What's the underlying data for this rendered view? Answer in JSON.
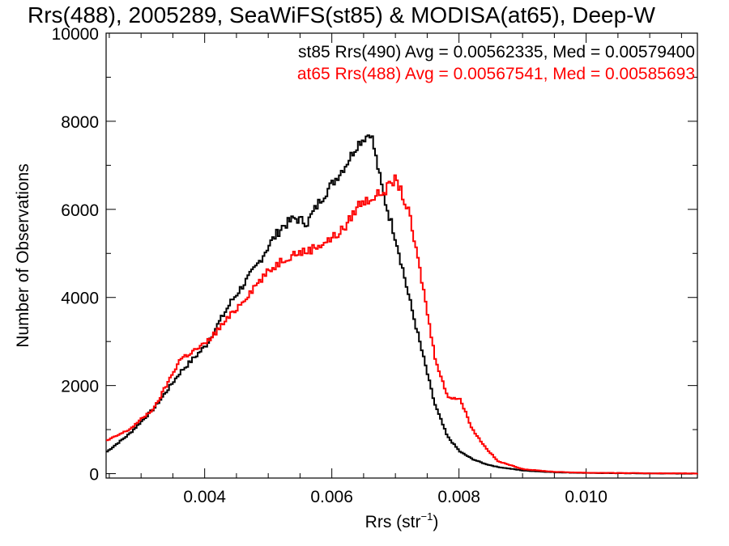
{
  "chart_data": {
    "type": "line",
    "title": "Rrs(488), 2005289, SeaWiFS(st85) & MODISA(at65), Deep-W",
    "xlabel_main": "Rrs (str",
    "xlabel_sup": "−1",
    "xlabel_close": ")",
    "ylabel": "Number of Observations",
    "xlim": [
      0.00245,
      0.01175
    ],
    "ylim": [
      -100,
      10000
    ],
    "x_ticks": [
      0.004,
      0.006,
      0.008,
      0.01
    ],
    "x_tick_labels": [
      "0.004",
      "0.006",
      "0.008",
      "0.010"
    ],
    "y_ticks": [
      0,
      2000,
      4000,
      6000,
      8000,
      10000
    ],
    "y_tick_labels": [
      "0",
      "2000",
      "4000",
      "6000",
      "8000",
      "10000"
    ],
    "legend_placement": "top-right",
    "series": [
      {
        "name": "st85 Rrs(490) Avg = 0.00562335, Med = 0.00579400",
        "color": "#000000",
        "points": [
          [
            0.00245,
            500
          ],
          [
            0.0028,
            900
          ],
          [
            0.0032,
            1500
          ],
          [
            0.0036,
            2300
          ],
          [
            0.004,
            2900
          ],
          [
            0.0044,
            3900
          ],
          [
            0.0048,
            4700
          ],
          [
            0.005,
            5200
          ],
          [
            0.0052,
            5600
          ],
          [
            0.0054,
            5800
          ],
          [
            0.0056,
            5700
          ],
          [
            0.0058,
            6200
          ],
          [
            0.006,
            6600
          ],
          [
            0.0062,
            7000
          ],
          [
            0.0064,
            7500
          ],
          [
            0.0066,
            7750
          ],
          [
            0.0068,
            6300
          ],
          [
            0.007,
            5300
          ],
          [
            0.0072,
            4000
          ],
          [
            0.0074,
            2800
          ],
          [
            0.0076,
            1600
          ],
          [
            0.0078,
            850
          ],
          [
            0.008,
            500
          ],
          [
            0.0082,
            330
          ],
          [
            0.0084,
            220
          ],
          [
            0.0086,
            150
          ],
          [
            0.009,
            70
          ],
          [
            0.0095,
            30
          ],
          [
            0.01,
            15
          ],
          [
            0.011,
            5
          ],
          [
            0.01175,
            0
          ]
        ]
      },
      {
        "name": "at65 Rrs(488) Avg = 0.00567541, Med = 0.00585693",
        "color": "#ff0000",
        "points": [
          [
            0.00245,
            750
          ],
          [
            0.0028,
            1000
          ],
          [
            0.0032,
            1500
          ],
          [
            0.0036,
            2600
          ],
          [
            0.004,
            2950
          ],
          [
            0.0044,
            3600
          ],
          [
            0.0048,
            4300
          ],
          [
            0.005,
            4600
          ],
          [
            0.0052,
            4850
          ],
          [
            0.0054,
            5000
          ],
          [
            0.0056,
            5050
          ],
          [
            0.0058,
            5200
          ],
          [
            0.006,
            5350
          ],
          [
            0.0062,
            5600
          ],
          [
            0.0064,
            6100
          ],
          [
            0.0066,
            6250
          ],
          [
            0.0068,
            6400
          ],
          [
            0.007,
            6700
          ],
          [
            0.0072,
            5900
          ],
          [
            0.0074,
            4400
          ],
          [
            0.0076,
            2700
          ],
          [
            0.0078,
            1750
          ],
          [
            0.008,
            1700
          ],
          [
            0.0082,
            1000
          ],
          [
            0.0084,
            600
          ],
          [
            0.0086,
            280
          ],
          [
            0.009,
            100
          ],
          [
            0.0095,
            40
          ],
          [
            0.01,
            20
          ],
          [
            0.011,
            8
          ],
          [
            0.01175,
            5
          ]
        ]
      }
    ]
  }
}
